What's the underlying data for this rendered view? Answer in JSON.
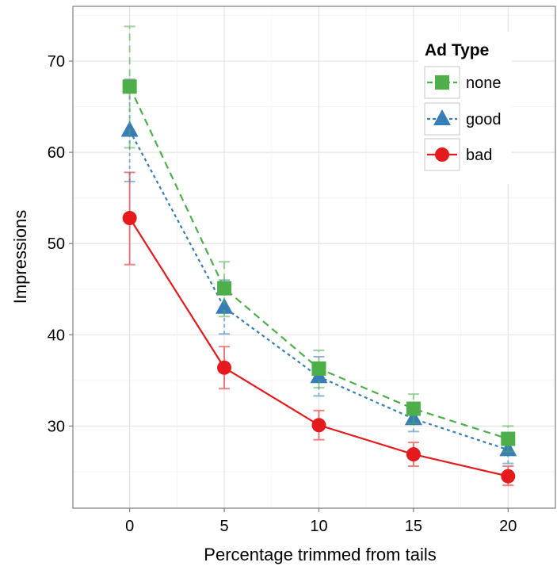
{
  "chart_data": {
    "type": "line",
    "xlabel": "Percentage trimmed from tails",
    "ylabel": "Impressions",
    "x": [
      0,
      5,
      10,
      15,
      20
    ],
    "x_ticks": [
      "0",
      "5",
      "10",
      "15",
      "20"
    ],
    "y_ticks": [
      "30",
      "40",
      "50",
      "60",
      "70"
    ],
    "xlim": [
      -3,
      22.5
    ],
    "ylim": [
      21,
      76
    ],
    "grid": true,
    "legend": {
      "title": "Ad Type",
      "position": "top-right",
      "entries": [
        "none",
        "good",
        "bad"
      ]
    },
    "series": [
      {
        "name": "none",
        "color": "#4DAF4A",
        "marker": "square",
        "line": "dashed",
        "values": [
          67.2,
          45.1,
          36.3,
          31.9,
          28.6
        ],
        "lower": [
          60.5,
          42.0,
          34.2,
          30.3,
          27.2
        ],
        "upper": [
          73.8,
          48.0,
          38.3,
          33.5,
          30.0
        ]
      },
      {
        "name": "good",
        "color": "#377EB8",
        "marker": "triangle",
        "line": "dotted",
        "values": [
          62.4,
          43.0,
          35.4,
          30.8,
          27.4
        ],
        "lower": [
          56.8,
          40.1,
          33.3,
          29.4,
          25.9
        ],
        "upper": [
          68.0,
          46.0,
          37.6,
          32.4,
          29.0
        ]
      },
      {
        "name": "bad",
        "color": "#E41A1C",
        "marker": "circle",
        "line": "solid",
        "values": [
          52.8,
          36.4,
          30.1,
          26.9,
          24.5
        ],
        "lower": [
          47.7,
          34.1,
          28.5,
          25.6,
          23.5
        ],
        "upper": [
          57.8,
          38.7,
          31.7,
          28.2,
          25.6
        ]
      }
    ]
  }
}
